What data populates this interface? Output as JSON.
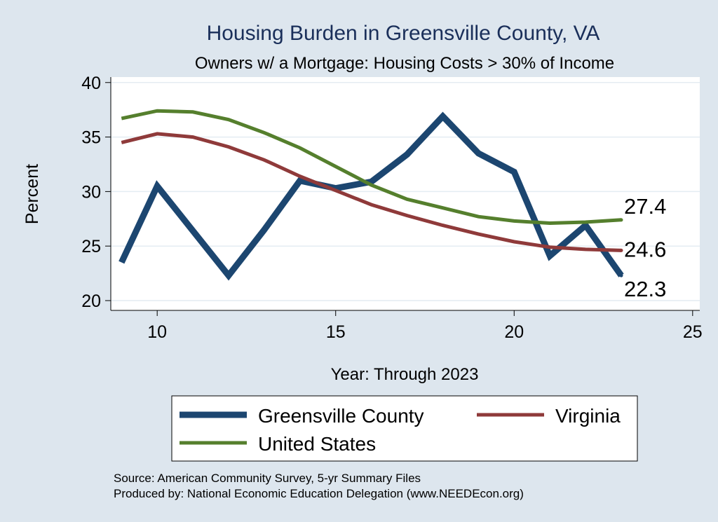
{
  "colors": {
    "background": "#dde6ee",
    "plot_background": "#ffffff",
    "grid": "#e4ecf2",
    "title": "#1a2f5a",
    "greensville": "#1c4670",
    "virginia": "#8f3a3a",
    "united_states": "#557f2d"
  },
  "legend": {
    "items": [
      {
        "label": "Greensville County"
      },
      {
        "label": "Virginia"
      },
      {
        "label": "United States"
      }
    ]
  },
  "footer": {
    "source": "Source: American Community Survey, 5-yr Summary Files",
    "produced_by": "Produced by: National Economic Education Delegation (www.NEEDEcon.org)"
  },
  "chart_data": {
    "type": "line",
    "title": "Housing Burden in Greensville County, VA",
    "subtitle": "Owners w/ a Mortgage: Housing Costs > 30% of Income",
    "xlabel": "Year: Through 2023",
    "ylabel": "Percent",
    "xlim": [
      8.7,
      25.2
    ],
    "ylim": [
      19.1,
      40.5
    ],
    "xticks": [
      10,
      15,
      20,
      25
    ],
    "yticks": [
      20,
      25,
      30,
      35,
      40
    ],
    "grid": true,
    "legend_position": "bottom",
    "x": [
      9,
      10,
      11,
      12,
      13,
      14,
      15,
      16,
      17,
      18,
      19,
      20,
      21,
      22,
      23
    ],
    "series": [
      {
        "name": "Greensville County",
        "color": "#1c4670",
        "width": 9,
        "values": [
          23.5,
          30.5,
          26.4,
          22.3,
          26.5,
          31.0,
          30.3,
          30.9,
          33.4,
          36.9,
          33.5,
          31.8,
          24.1,
          26.9,
          22.3
        ],
        "end_label": "22.3"
      },
      {
        "name": "Virginia",
        "color": "#8f3a3a",
        "width": 5,
        "values": [
          34.5,
          35.3,
          35.0,
          34.1,
          32.9,
          31.4,
          30.1,
          28.8,
          27.8,
          26.9,
          26.1,
          25.4,
          24.9,
          24.7,
          24.6
        ],
        "end_label": "24.6"
      },
      {
        "name": "United States",
        "color": "#557f2d",
        "width": 5,
        "values": [
          36.7,
          37.4,
          37.3,
          36.6,
          35.4,
          34.0,
          32.3,
          30.6,
          29.3,
          28.5,
          27.7,
          27.3,
          27.1,
          27.2,
          27.4
        ],
        "end_label": "27.4"
      }
    ]
  }
}
